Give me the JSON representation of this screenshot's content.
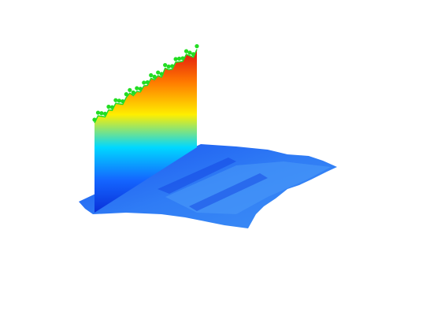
{
  "chart_data": {
    "type": "surface3d",
    "zlim": [
      0,
      120
    ],
    "series": [
      {
        "color": "#22dd22",
        "values": [
          95,
          100,
          97,
          94,
          99,
          96,
          101,
          98,
          95,
          100,
          102,
          97,
          99,
          96,
          100,
          98,
          103,
          99,
          101,
          97,
          104,
          100,
          98,
          103,
          101,
          99,
          104,
          100,
          96,
          102
        ]
      }
    ],
    "colormap": [
      "#0a2fd8",
      "#1466ff",
      "#00d8ff",
      "#ffee00",
      "#ff7a00",
      "#e01010"
    ]
  }
}
